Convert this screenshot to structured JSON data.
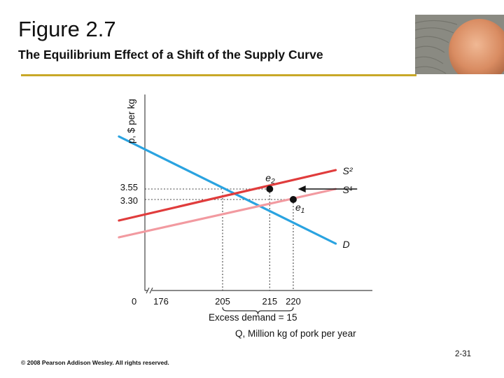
{
  "slide": {
    "title": "Figure 2.7",
    "subtitle": "The Equilibrium Effect of a Shift of the Supply Curve",
    "copyright": "© 2008 Pearson Addison Wesley. All rights reserved.",
    "page_number": "2-31",
    "accent_color": "#c8a828"
  },
  "chart_data": {
    "type": "line",
    "ylabel": "p, $ per kg",
    "xlabel": "Q, Million kg of pork per year",
    "origin_label": "0",
    "x_ticks": [
      {
        "value": 176,
        "label": "176"
      },
      {
        "value": 205,
        "label": "205"
      },
      {
        "value": 215,
        "label": "215"
      },
      {
        "value": 220,
        "label": "220"
      }
    ],
    "y_ticks": [
      {
        "value": 3.55,
        "label": "3.55"
      },
      {
        "value": 3.3,
        "label": "3.30"
      }
    ],
    "series": [
      {
        "name": "D",
        "color": "#2aa3e0",
        "points": [
          [
            183,
            4.8
          ],
          [
            229,
            2.25
          ]
        ]
      },
      {
        "name": "S²",
        "color": "#e03c3c",
        "points": [
          [
            183,
            2.8
          ],
          [
            229,
            4.0
          ]
        ]
      },
      {
        "name": "S¹",
        "color": "#f29aa0",
        "points": [
          [
            183,
            2.4
          ],
          [
            229,
            3.55
          ]
        ]
      }
    ],
    "equilibria": [
      {
        "label": "e",
        "sub": "2",
        "x": 215,
        "y": 3.55
      },
      {
        "label": "e",
        "sub": "1",
        "x": 220,
        "y": 3.3
      }
    ],
    "excess_demand": {
      "label": "Excess demand = 15",
      "from": 205,
      "to": 220
    },
    "shift_arrow": {
      "from": [
        230,
        3.55
      ],
      "to": [
        221,
        3.55
      ]
    },
    "axis_break": true
  }
}
